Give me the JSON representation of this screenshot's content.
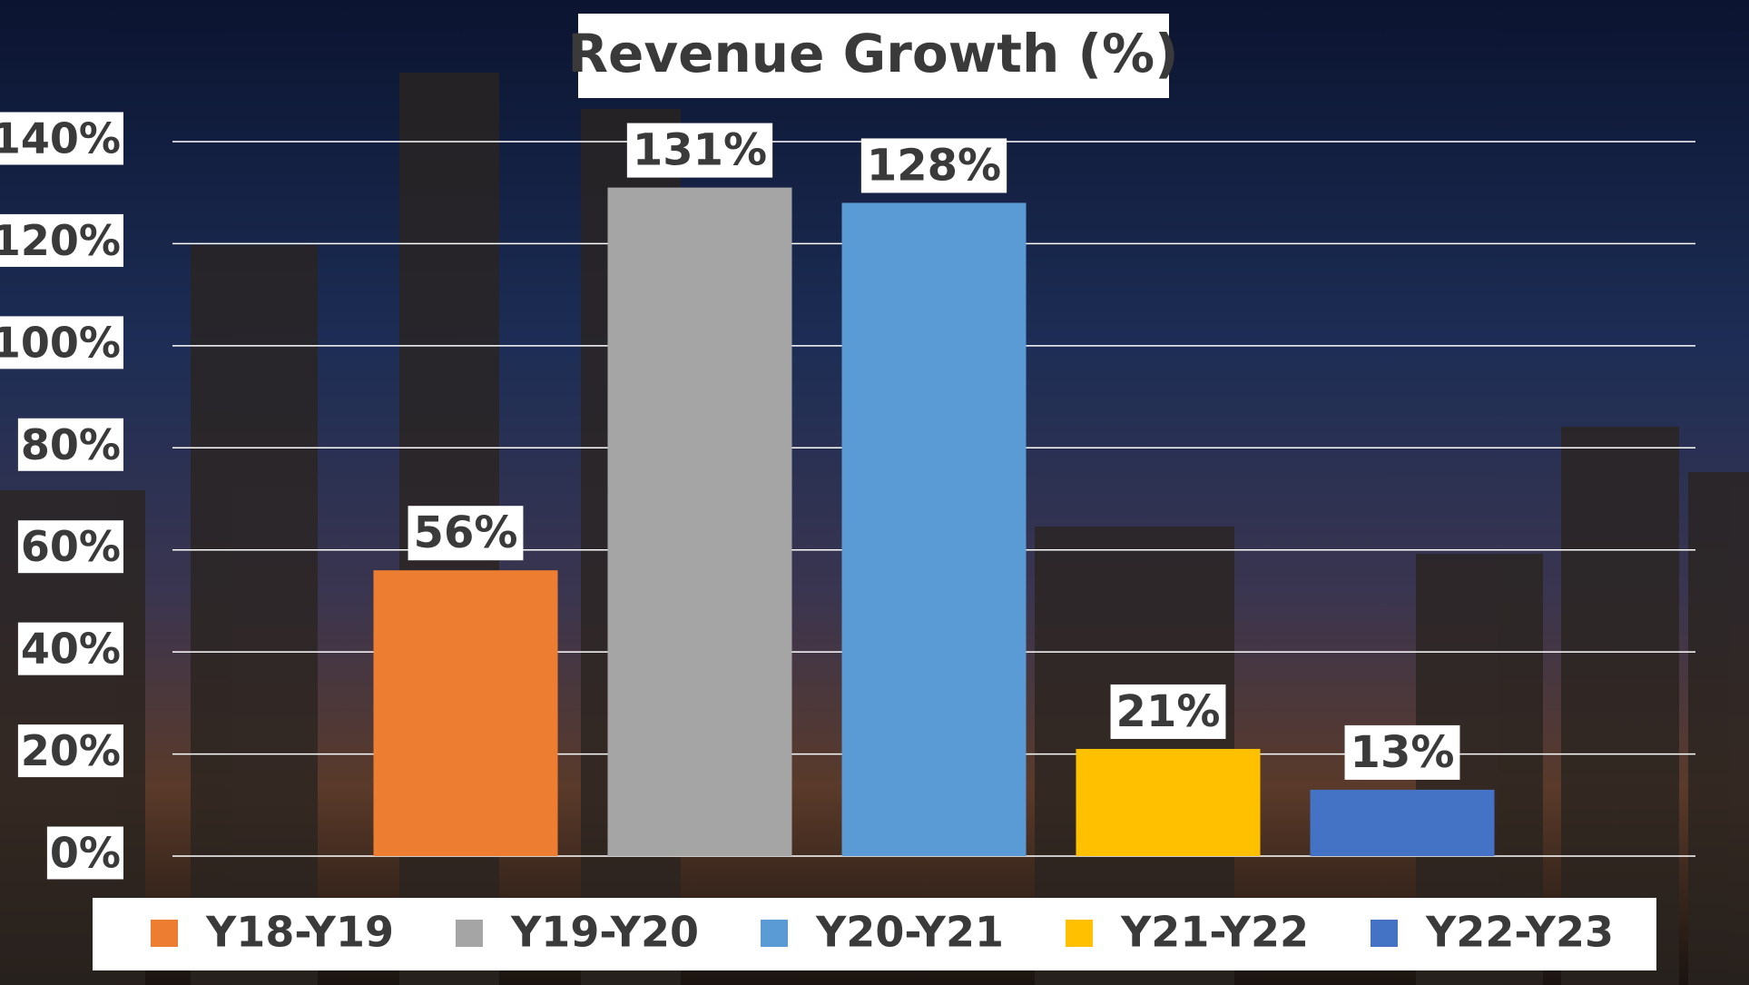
{
  "chart_data": {
    "type": "bar",
    "title": "Revenue Growth (%)",
    "categories": [
      "Y18-Y19",
      "Y19-Y20",
      "Y20-Y21",
      "Y21-Y22",
      "Y22-Y23"
    ],
    "values": [
      56,
      131,
      128,
      21,
      13
    ],
    "value_labels": [
      "56%",
      "131%",
      "128%",
      "21%",
      "13%"
    ],
    "colors": [
      "#ed7d31",
      "#a5a5a5",
      "#5b9bd5",
      "#ffc000",
      "#4472c4"
    ],
    "ylim": [
      0,
      140
    ],
    "yticks": [
      {
        "value": 0,
        "label": "0%"
      },
      {
        "value": 20,
        "label": "20%"
      },
      {
        "value": 40,
        "label": "40%"
      },
      {
        "value": 60,
        "label": "60%"
      },
      {
        "value": 80,
        "label": "80%"
      },
      {
        "value": 100,
        "label": "100%"
      },
      {
        "value": 120,
        "label": "120%"
      },
      {
        "value": 140,
        "label": "140%"
      }
    ],
    "grid": true,
    "legend": "bottom"
  }
}
